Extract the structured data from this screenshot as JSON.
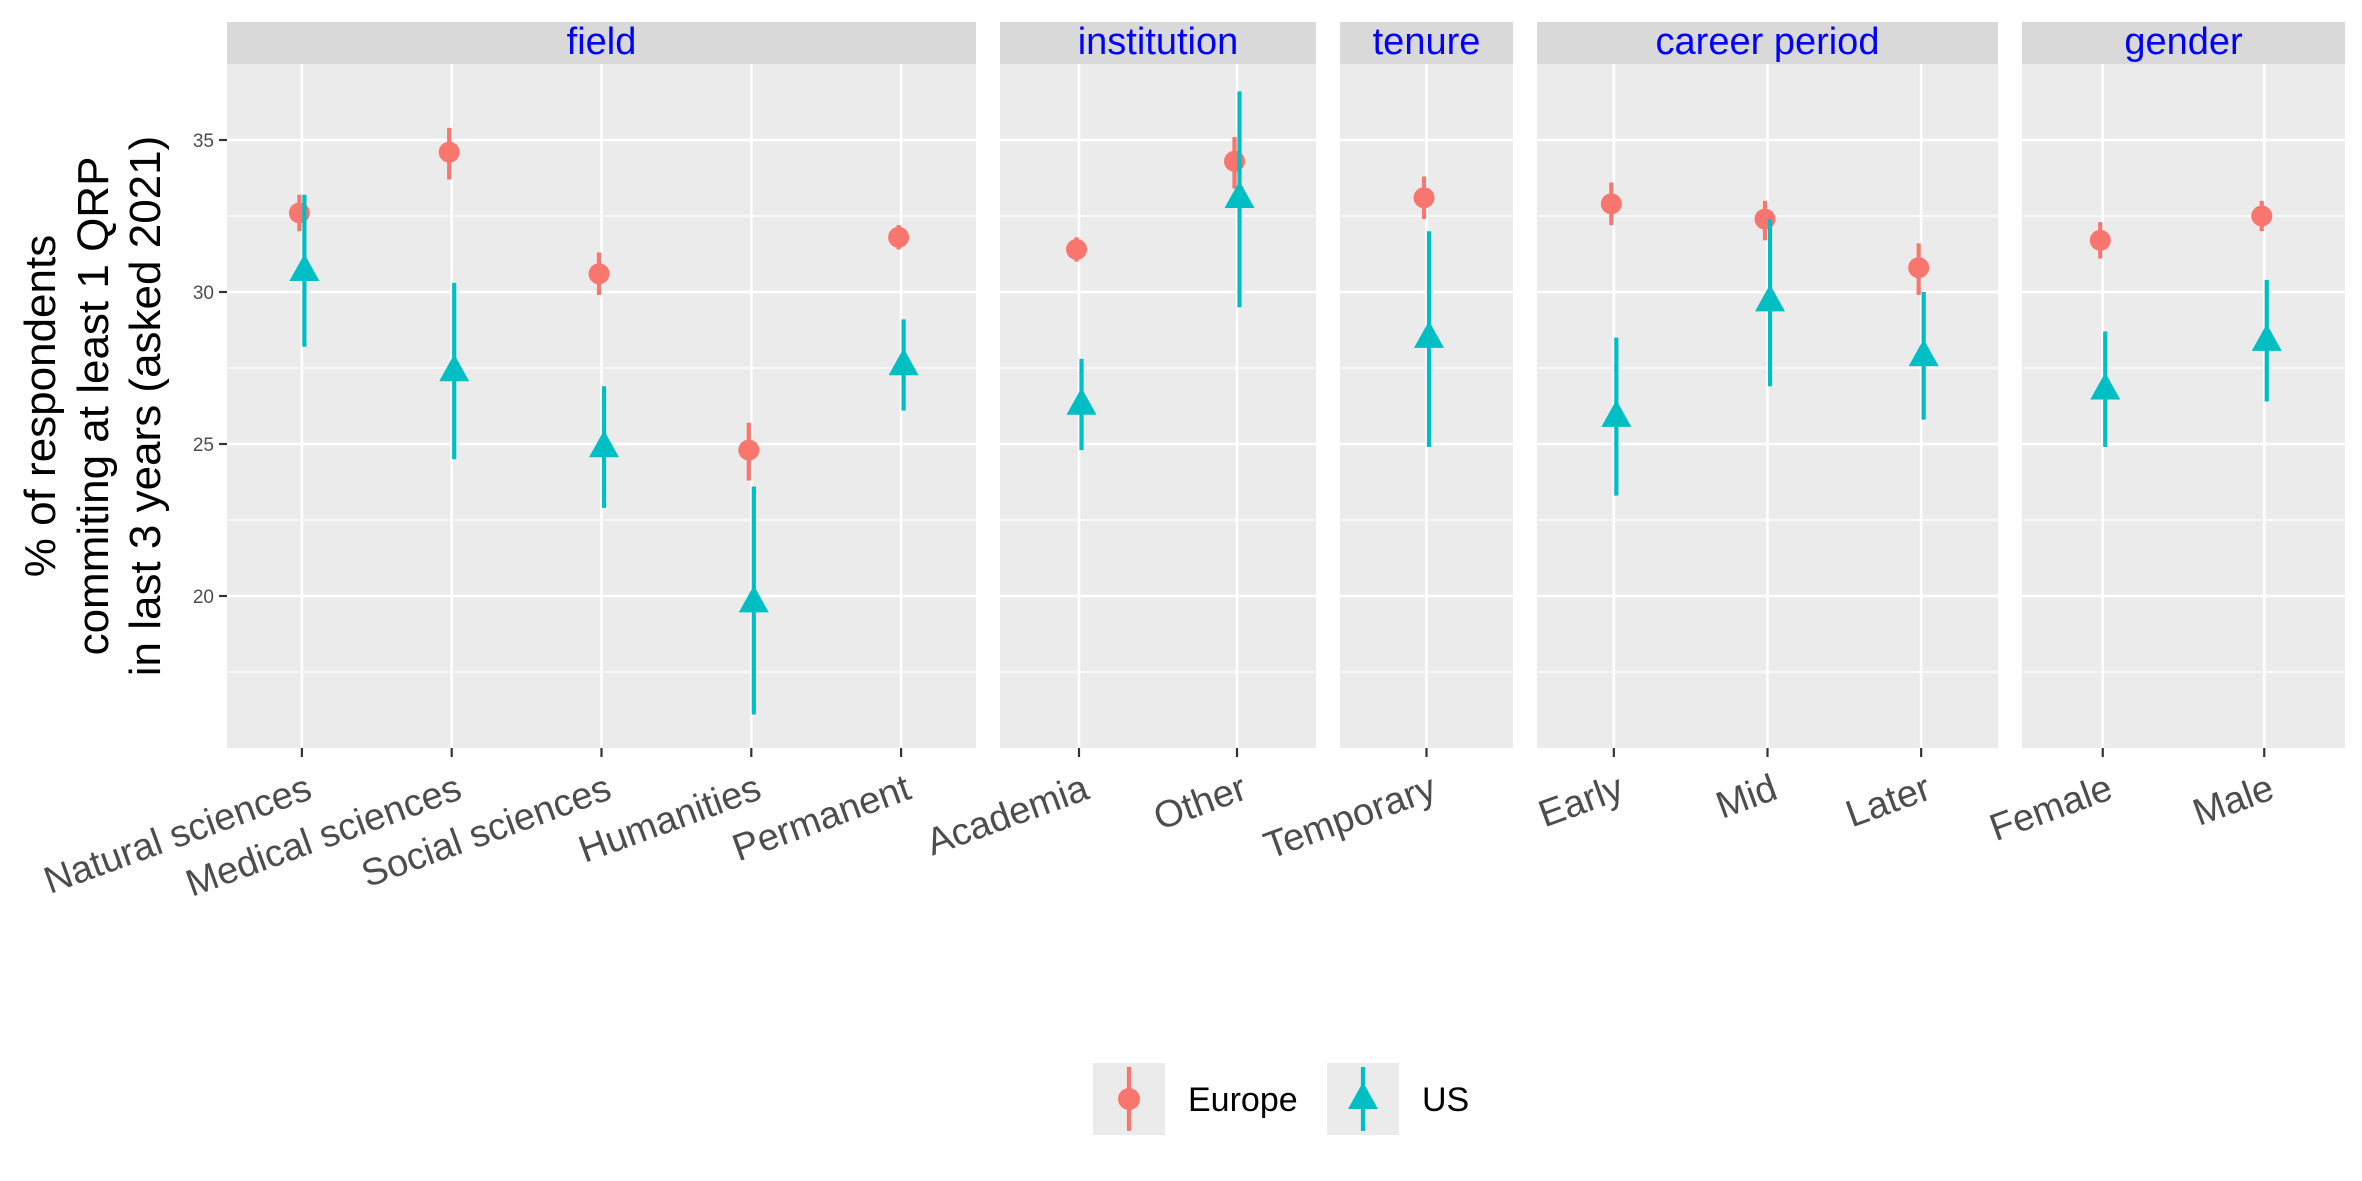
{
  "chart_data": {
    "type": "scatter",
    "subtype": "pointrange",
    "title": "",
    "xlabel": "",
    "ylabel": "% of respondents\ncommiting at least 1 QRP\nin last 3 years (asked 2021)",
    "ylim": [
      15.0,
      37.5
    ],
    "yticks": [
      20,
      25,
      30,
      35
    ],
    "grid": true,
    "legend_position": "bottom",
    "colors": {
      "Europe": "#F8766D",
      "US": "#00BFC4",
      "strip_text": "#0000FF"
    },
    "markers": {
      "Europe": "circle",
      "US": "triangle"
    },
    "panels": [
      {
        "name": "field",
        "categories": [
          "Natural sciences",
          "Medical sciences",
          "Social sciences",
          "Humanities",
          "Permanent"
        ]
      },
      {
        "name": "institution",
        "categories": [
          "Academia",
          "Other"
        ]
      },
      {
        "name": "tenure",
        "categories": [
          "Temporary"
        ]
      },
      {
        "name": "career period",
        "categories": [
          "Early",
          "Mid",
          "Later"
        ]
      },
      {
        "name": "gender",
        "categories": [
          "Female",
          "Male"
        ]
      }
    ],
    "series": [
      {
        "name": "Europe",
        "points": [
          {
            "panel": "field",
            "category": "Natural sciences",
            "y": 32.6,
            "ymin": 32.0,
            "ymax": 33.2
          },
          {
            "panel": "field",
            "category": "Medical sciences",
            "y": 34.6,
            "ymin": 33.7,
            "ymax": 35.4
          },
          {
            "panel": "field",
            "category": "Social sciences",
            "y": 30.6,
            "ymin": 29.9,
            "ymax": 31.3
          },
          {
            "panel": "field",
            "category": "Humanities",
            "y": 24.8,
            "ymin": 23.8,
            "ymax": 25.7
          },
          {
            "panel": "field",
            "category": "Permanent",
            "y": 31.8,
            "ymin": 31.4,
            "ymax": 32.2
          },
          {
            "panel": "institution",
            "category": "Academia",
            "y": 31.4,
            "ymin": 31.0,
            "ymax": 31.8
          },
          {
            "panel": "institution",
            "category": "Other",
            "y": 34.3,
            "ymin": 33.4,
            "ymax": 35.1
          },
          {
            "panel": "tenure",
            "category": "Temporary",
            "y": 33.1,
            "ymin": 32.4,
            "ymax": 33.8
          },
          {
            "panel": "career period",
            "category": "Early",
            "y": 32.9,
            "ymin": 32.2,
            "ymax": 33.6
          },
          {
            "panel": "career period",
            "category": "Mid",
            "y": 32.4,
            "ymin": 31.7,
            "ymax": 33.0
          },
          {
            "panel": "career period",
            "category": "Later",
            "y": 30.8,
            "ymin": 29.9,
            "ymax": 31.6
          },
          {
            "panel": "gender",
            "category": "Female",
            "y": 31.7,
            "ymin": 31.1,
            "ymax": 32.3
          },
          {
            "panel": "gender",
            "category": "Male",
            "y": 32.5,
            "ymin": 32.0,
            "ymax": 33.0
          }
        ]
      },
      {
        "name": "US",
        "points": [
          {
            "panel": "field",
            "category": "Natural sciences",
            "y": 30.7,
            "ymin": 28.2,
            "ymax": 33.2
          },
          {
            "panel": "field",
            "category": "Medical sciences",
            "y": 27.4,
            "ymin": 24.5,
            "ymax": 30.3
          },
          {
            "panel": "field",
            "category": "Social sciences",
            "y": 24.9,
            "ymin": 22.9,
            "ymax": 26.9
          },
          {
            "panel": "field",
            "category": "Humanities",
            "y": 19.8,
            "ymin": 16.1,
            "ymax": 23.6
          },
          {
            "panel": "field",
            "category": "Permanent",
            "y": 27.6,
            "ymin": 26.1,
            "ymax": 29.1
          },
          {
            "panel": "institution",
            "category": "Academia",
            "y": 26.3,
            "ymin": 24.8,
            "ymax": 27.8
          },
          {
            "panel": "institution",
            "category": "Other",
            "y": 33.1,
            "ymin": 29.5,
            "ymax": 36.6
          },
          {
            "panel": "tenure",
            "category": "Temporary",
            "y": 28.5,
            "ymin": 24.9,
            "ymax": 32.0
          },
          {
            "panel": "career period",
            "category": "Early",
            "y": 25.9,
            "ymin": 23.3,
            "ymax": 28.5
          },
          {
            "panel": "career period",
            "category": "Mid",
            "y": 29.7,
            "ymin": 26.9,
            "ymax": 32.4
          },
          {
            "panel": "career period",
            "category": "Later",
            "y": 27.9,
            "ymin": 25.8,
            "ymax": 30.0
          },
          {
            "panel": "gender",
            "category": "Female",
            "y": 26.8,
            "ymin": 24.9,
            "ymax": 28.7
          },
          {
            "panel": "gender",
            "category": "Male",
            "y": 28.4,
            "ymin": 26.4,
            "ymax": 30.4
          }
        ]
      }
    ]
  }
}
